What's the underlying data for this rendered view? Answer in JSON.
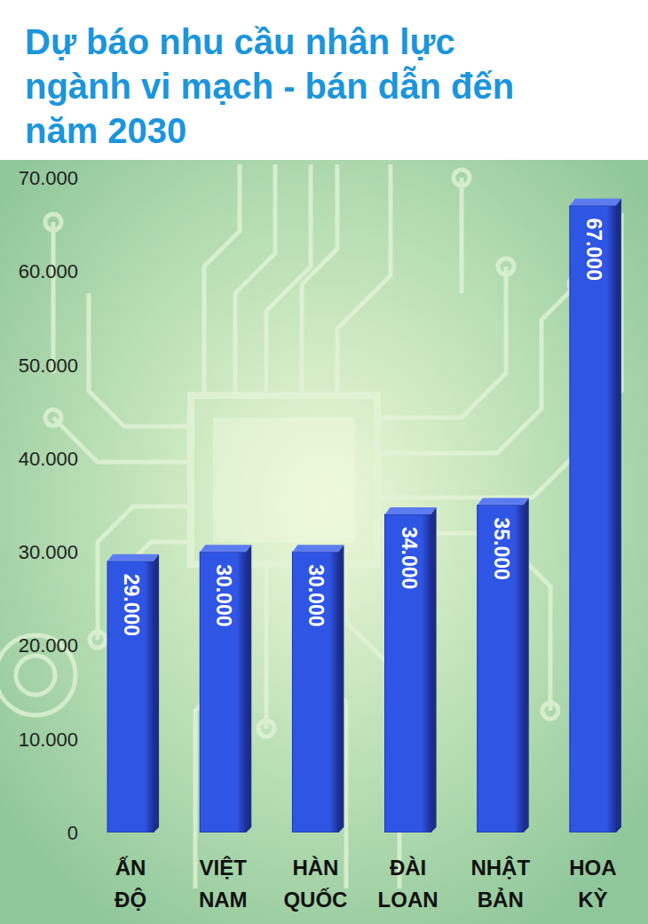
{
  "chart_data": {
    "type": "bar",
    "title": "Dự báo nhu cầu nhân lực ngành vi mạch - bán dẫn đến năm 2030",
    "categories": [
      "ẤN ĐỘ",
      "VIỆT NAM",
      "HÀN QUỐC",
      "ĐÀI LOAN",
      "NHẬT BẢN",
      "HOA KỲ"
    ],
    "values": [
      29000,
      30000,
      30000,
      34000,
      35000,
      67000
    ],
    "value_labels": [
      "29.000",
      "30.000",
      "30.000",
      "34.000",
      "35.000",
      "67.000"
    ],
    "color": "#2f55e4",
    "ylim": [
      0,
      70000
    ],
    "yticks": [
      0,
      {
        "value": 10000,
        "label": "10.000"
      },
      {
        "value": 20000,
        "label": "20.000"
      },
      {
        "value": 30000,
        "label": "30.000"
      },
      {
        "value": 40000,
        "label": "40.000"
      },
      {
        "value": 50000,
        "label": "50.000"
      },
      {
        "value": 60000,
        "label": "60.000"
      },
      {
        "value": 70000,
        "label": "70.000"
      }
    ],
    "grid": false,
    "data_labels": true
  }
}
